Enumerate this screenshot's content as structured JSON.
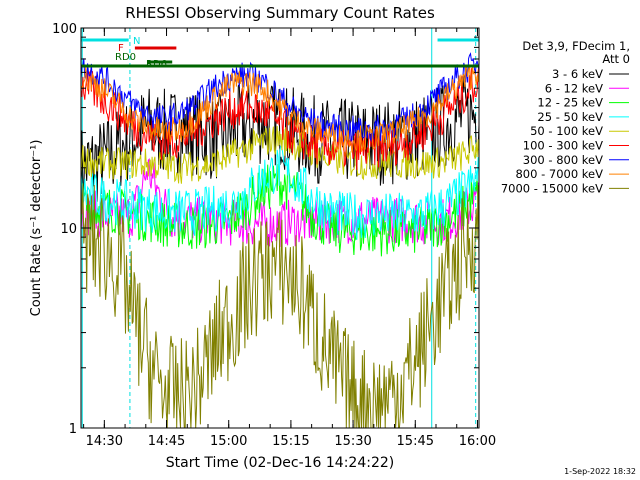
{
  "chart_data": {
    "type": "line",
    "title": "RHESSI Observing Summary Count Rates",
    "xlabel": "Start Time (02-Dec-16 14:24:22)",
    "ylabel": "Count Rate (s⁻¹ detector⁻¹)",
    "yscale": "log",
    "ylim": [
      1,
      100
    ],
    "xlim_minutes": [
      0,
      96
    ],
    "x_ticks": [
      "14:30",
      "14:45",
      "15:00",
      "15:15",
      "15:30",
      "15:45",
      "16:00"
    ],
    "x_tick_minutes": [
      5.63,
      20.63,
      35.63,
      50.63,
      65.63,
      80.63,
      95.63
    ],
    "y_ticks": [
      "1",
      "10",
      "100"
    ],
    "y_tick_values": [
      1,
      10,
      100
    ],
    "legend_header": [
      "Det 3,9, FDecim 1,",
      "Att 0"
    ],
    "footer_stamp": "1-Sep-2022 18:32",
    "flag_bars": [
      {
        "label": "N",
        "color": "#00e0e0",
        "segments": [
          [
            0,
            11.5
          ],
          [
            86,
            96
          ]
        ]
      },
      {
        "label": "F",
        "color": "#e00000",
        "segments": [
          [
            13,
            23
          ]
        ]
      },
      {
        "label": "RD0",
        "color": "#006400",
        "segments": [
          [
            0,
            96
          ]
        ]
      },
      {
        "label": "RD6",
        "color": "#006400",
        "segments": [
          [
            16,
            22
          ]
        ]
      }
    ],
    "night_lines_solid": [
      0.3,
      84.6
    ],
    "night_lines_dashed": [
      11.8,
      95.2
    ],
    "series": [
      {
        "name": "3 - 6 keV",
        "color": "#000000",
        "x": [
          0,
          6,
          12,
          16,
          20,
          24,
          28,
          32,
          36,
          40,
          44,
          48,
          52,
          56,
          60,
          64,
          68,
          72,
          76,
          80,
          84,
          88,
          92,
          96
        ],
        "y": [
          20,
          22,
          28,
          32,
          30,
          31,
          30,
          28,
          30,
          33,
          34,
          33,
          30,
          28,
          27,
          27,
          27,
          27,
          27,
          28,
          30,
          33,
          36,
          38
        ]
      },
      {
        "name": "6 - 12 keV",
        "color": "#ff00ff",
        "x": [
          0,
          6,
          12,
          14,
          16,
          18,
          20,
          22,
          26,
          32,
          40,
          48,
          56,
          64,
          72,
          80,
          84,
          88,
          92,
          96
        ],
        "y": [
          12,
          11.5,
          11.5,
          14,
          20,
          16,
          13,
          11.5,
          11,
          10.8,
          10.5,
          10.5,
          10.8,
          11,
          11,
          11,
          10.5,
          11,
          12,
          14
        ]
      },
      {
        "name": "12 - 25 keV",
        "color": "#00ff00",
        "x": [
          0,
          6,
          12,
          20,
          28,
          36,
          40,
          44,
          48,
          52,
          56,
          60,
          64,
          72,
          80,
          84,
          88,
          92,
          96
        ],
        "y": [
          13,
          12.5,
          11.8,
          10.5,
          10,
          11,
          13,
          15.5,
          17,
          15,
          11.5,
          10,
          9.5,
          9.5,
          9.5,
          10,
          11,
          12.5,
          15
        ]
      },
      {
        "name": "25 - 50 keV",
        "color": "#00ffff",
        "x": [
          0,
          6,
          12,
          16,
          20,
          28,
          36,
          40,
          44,
          48,
          52,
          56,
          60,
          64,
          72,
          80,
          84,
          88,
          92,
          96
        ],
        "y": [
          15,
          14,
          13,
          12.5,
          12,
          12,
          13,
          15,
          18,
          20,
          17,
          14,
          12,
          11.5,
          11.5,
          11.5,
          12,
          13,
          15,
          18
        ]
      },
      {
        "name": "50 - 100 keV",
        "color": "#c8c800",
        "x": [
          0,
          6,
          12,
          16,
          20,
          24,
          28,
          32,
          36,
          40,
          44,
          48,
          52,
          56,
          60,
          64,
          68,
          72,
          76,
          80,
          84,
          88,
          92,
          96
        ],
        "y": [
          22,
          21,
          21,
          21,
          20.5,
          20,
          20.5,
          21,
          23,
          25,
          27,
          28,
          26,
          24,
          22,
          21.5,
          21,
          21,
          21,
          21,
          21,
          21.5,
          23,
          26
        ]
      },
      {
        "name": "100 - 300 keV",
        "color": "#ff0000",
        "x": [
          0,
          4,
          8,
          12,
          16,
          20,
          24,
          28,
          32,
          36,
          40,
          44,
          48,
          52,
          56,
          60,
          64,
          68,
          72,
          76,
          80,
          84,
          88,
          92,
          96
        ],
        "y": [
          52,
          47,
          40,
          33,
          29,
          27,
          28,
          31,
          35,
          39,
          40,
          38,
          33,
          28,
          26,
          25,
          24.5,
          24.5,
          25,
          26,
          28,
          32,
          38,
          46,
          55
        ]
      },
      {
        "name": "300 - 800 keV",
        "color": "#0000ff",
        "x": [
          0,
          4,
          8,
          12,
          16,
          20,
          24,
          28,
          32,
          36,
          40,
          44,
          48,
          52,
          56,
          60,
          64,
          68,
          72,
          76,
          80,
          84,
          88,
          92,
          96
        ],
        "y": [
          64,
          59,
          51,
          42,
          37,
          35,
          37,
          42,
          50,
          57,
          58,
          54,
          45,
          38,
          34,
          32,
          31,
          31,
          31.5,
          33,
          36,
          42,
          50,
          60,
          68
        ]
      },
      {
        "name": "800 - 7000 keV",
        "color": "#ff8000",
        "x": [
          0,
          4,
          8,
          12,
          16,
          20,
          24,
          28,
          32,
          36,
          40,
          44,
          48,
          52,
          56,
          60,
          64,
          68,
          72,
          76,
          80,
          84,
          88,
          92,
          96
        ],
        "y": [
          58,
          52,
          44,
          36,
          32,
          30,
          31,
          36,
          44,
          52,
          54,
          50,
          41,
          34,
          31,
          29,
          28,
          28,
          28.5,
          30,
          33,
          38,
          45,
          54,
          62
        ]
      },
      {
        "name": "7000 - 15000 keV",
        "color": "#808000",
        "x": [
          0,
          6,
          10,
          12,
          14,
          16,
          18,
          20,
          24,
          28,
          30,
          34,
          38,
          42,
          46,
          50,
          54,
          56,
          60,
          64,
          66,
          70,
          74,
          78,
          82,
          86,
          90,
          93,
          96
        ],
        "y": [
          9,
          8,
          6,
          4,
          3,
          2.3,
          1.8,
          1.5,
          1.4,
          1.6,
          2,
          3,
          4,
          5.5,
          6.5,
          6,
          4.5,
          3.5,
          2.2,
          1.6,
          1.4,
          1.3,
          1.4,
          1.7,
          2.5,
          4,
          6,
          8,
          10
        ]
      }
    ]
  }
}
